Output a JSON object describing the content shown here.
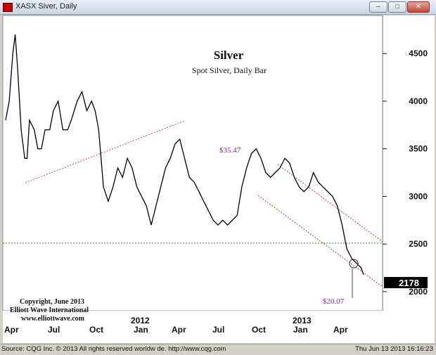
{
  "window": {
    "title": "XASX   Siver, Daily",
    "buttons": {
      "minimize": "–",
      "maximize": "□",
      "close": "✕"
    }
  },
  "icons": {
    "app": "chart-app-icon"
  },
  "colors": {
    "background": "#ffffff",
    "price": "#000000",
    "trendline_upper": "#c0504d",
    "support_line": "#2e8b2e",
    "channel": "#c0392b",
    "annotation": "#7a2a8c",
    "frame": "#d4d0c8"
  },
  "chart": {
    "title": "Silver",
    "subtitle": "Spot Silver, Daily Bar",
    "copyright_lines": [
      "Copyright, June 2013",
      "Elliott Wave International",
      "www.elliottwave.com"
    ],
    "annotations": {
      "high_label": "$35.47",
      "low_label": "$20.07"
    },
    "last_price": "2178"
  },
  "status": {
    "left": "Source: CQG Inc. © 2013 All rights reserved worldw de. http://www.cqg.com",
    "right": "Thu Jun 13 2013 16:16:23"
  },
  "chart_data": {
    "type": "line",
    "title": "Silver",
    "subtitle": "Spot Silver, Daily Bar",
    "xlabel": "",
    "ylabel": "",
    "x_tick_labels": [
      "Apr",
      "Jul",
      "Oct",
      "2012",
      "Jan",
      "Apr",
      "Jul",
      "Oct",
      "2013",
      "Jan",
      "Apr"
    ],
    "y_ticks": [
      2000,
      2500,
      3000,
      3500,
      4000,
      4500
    ],
    "ylim": [
      1800,
      4900
    ],
    "grid": false,
    "series": [
      {
        "values": [
          [
            0,
            3800
          ],
          [
            3,
            4000
          ],
          [
            6,
            4500
          ],
          [
            8,
            4700
          ],
          [
            10,
            4350
          ],
          [
            13,
            3700
          ],
          [
            16,
            3400
          ],
          [
            18,
            3400
          ],
          [
            20,
            3800
          ],
          [
            24,
            3700
          ],
          [
            27,
            3500
          ],
          [
            30,
            3500
          ],
          [
            33,
            3700
          ],
          [
            37,
            3700
          ],
          [
            40,
            3900
          ],
          [
            44,
            4000
          ],
          [
            48,
            3700
          ],
          [
            52,
            3700
          ],
          [
            55,
            3800
          ],
          [
            60,
            4000
          ],
          [
            64,
            4100
          ],
          [
            68,
            3900
          ],
          [
            72,
            4000
          ],
          [
            75,
            3900
          ],
          [
            78,
            3700
          ],
          [
            82,
            3100
          ],
          [
            86,
            2950
          ],
          [
            90,
            3100
          ],
          [
            94,
            3300
          ],
          [
            98,
            3200
          ],
          [
            102,
            3400
          ],
          [
            106,
            3300
          ],
          [
            110,
            3100
          ],
          [
            114,
            3000
          ],
          [
            118,
            2900
          ],
          [
            122,
            2700
          ],
          [
            126,
            2900
          ],
          [
            130,
            3100
          ],
          [
            134,
            3300
          ],
          [
            138,
            3400
          ],
          [
            142,
            3550
          ],
          [
            146,
            3600
          ],
          [
            150,
            3400
          ],
          [
            154,
            3200
          ],
          [
            158,
            3150
          ],
          [
            162,
            3050
          ],
          [
            166,
            2950
          ],
          [
            170,
            2850
          ],
          [
            174,
            2750
          ],
          [
            178,
            2700
          ],
          [
            182,
            2750
          ],
          [
            186,
            2700
          ],
          [
            190,
            2750
          ],
          [
            194,
            2800
          ],
          [
            198,
            3100
          ],
          [
            202,
            3300
          ],
          [
            206,
            3450
          ],
          [
            210,
            3500
          ],
          [
            214,
            3400
          ],
          [
            218,
            3250
          ],
          [
            222,
            3200
          ],
          [
            226,
            3250
          ],
          [
            230,
            3300
          ],
          [
            234,
            3400
          ],
          [
            238,
            3350
          ],
          [
            242,
            3200
          ],
          [
            246,
            3100
          ],
          [
            250,
            3050
          ],
          [
            254,
            3100
          ],
          [
            258,
            3250
          ],
          [
            262,
            3150
          ],
          [
            266,
            3100
          ],
          [
            270,
            3050
          ],
          [
            274,
            3000
          ],
          [
            278,
            2900
          ],
          [
            282,
            2700
          ],
          [
            286,
            2450
          ],
          [
            290,
            2350
          ],
          [
            294,
            2300
          ],
          [
            298,
            2250
          ],
          [
            300,
            2178
          ]
        ]
      }
    ],
    "annotations": [
      {
        "label": "$35.47",
        "y": 3547
      },
      {
        "label": "$20.07",
        "y": 2007
      }
    ],
    "legend": "none"
  }
}
